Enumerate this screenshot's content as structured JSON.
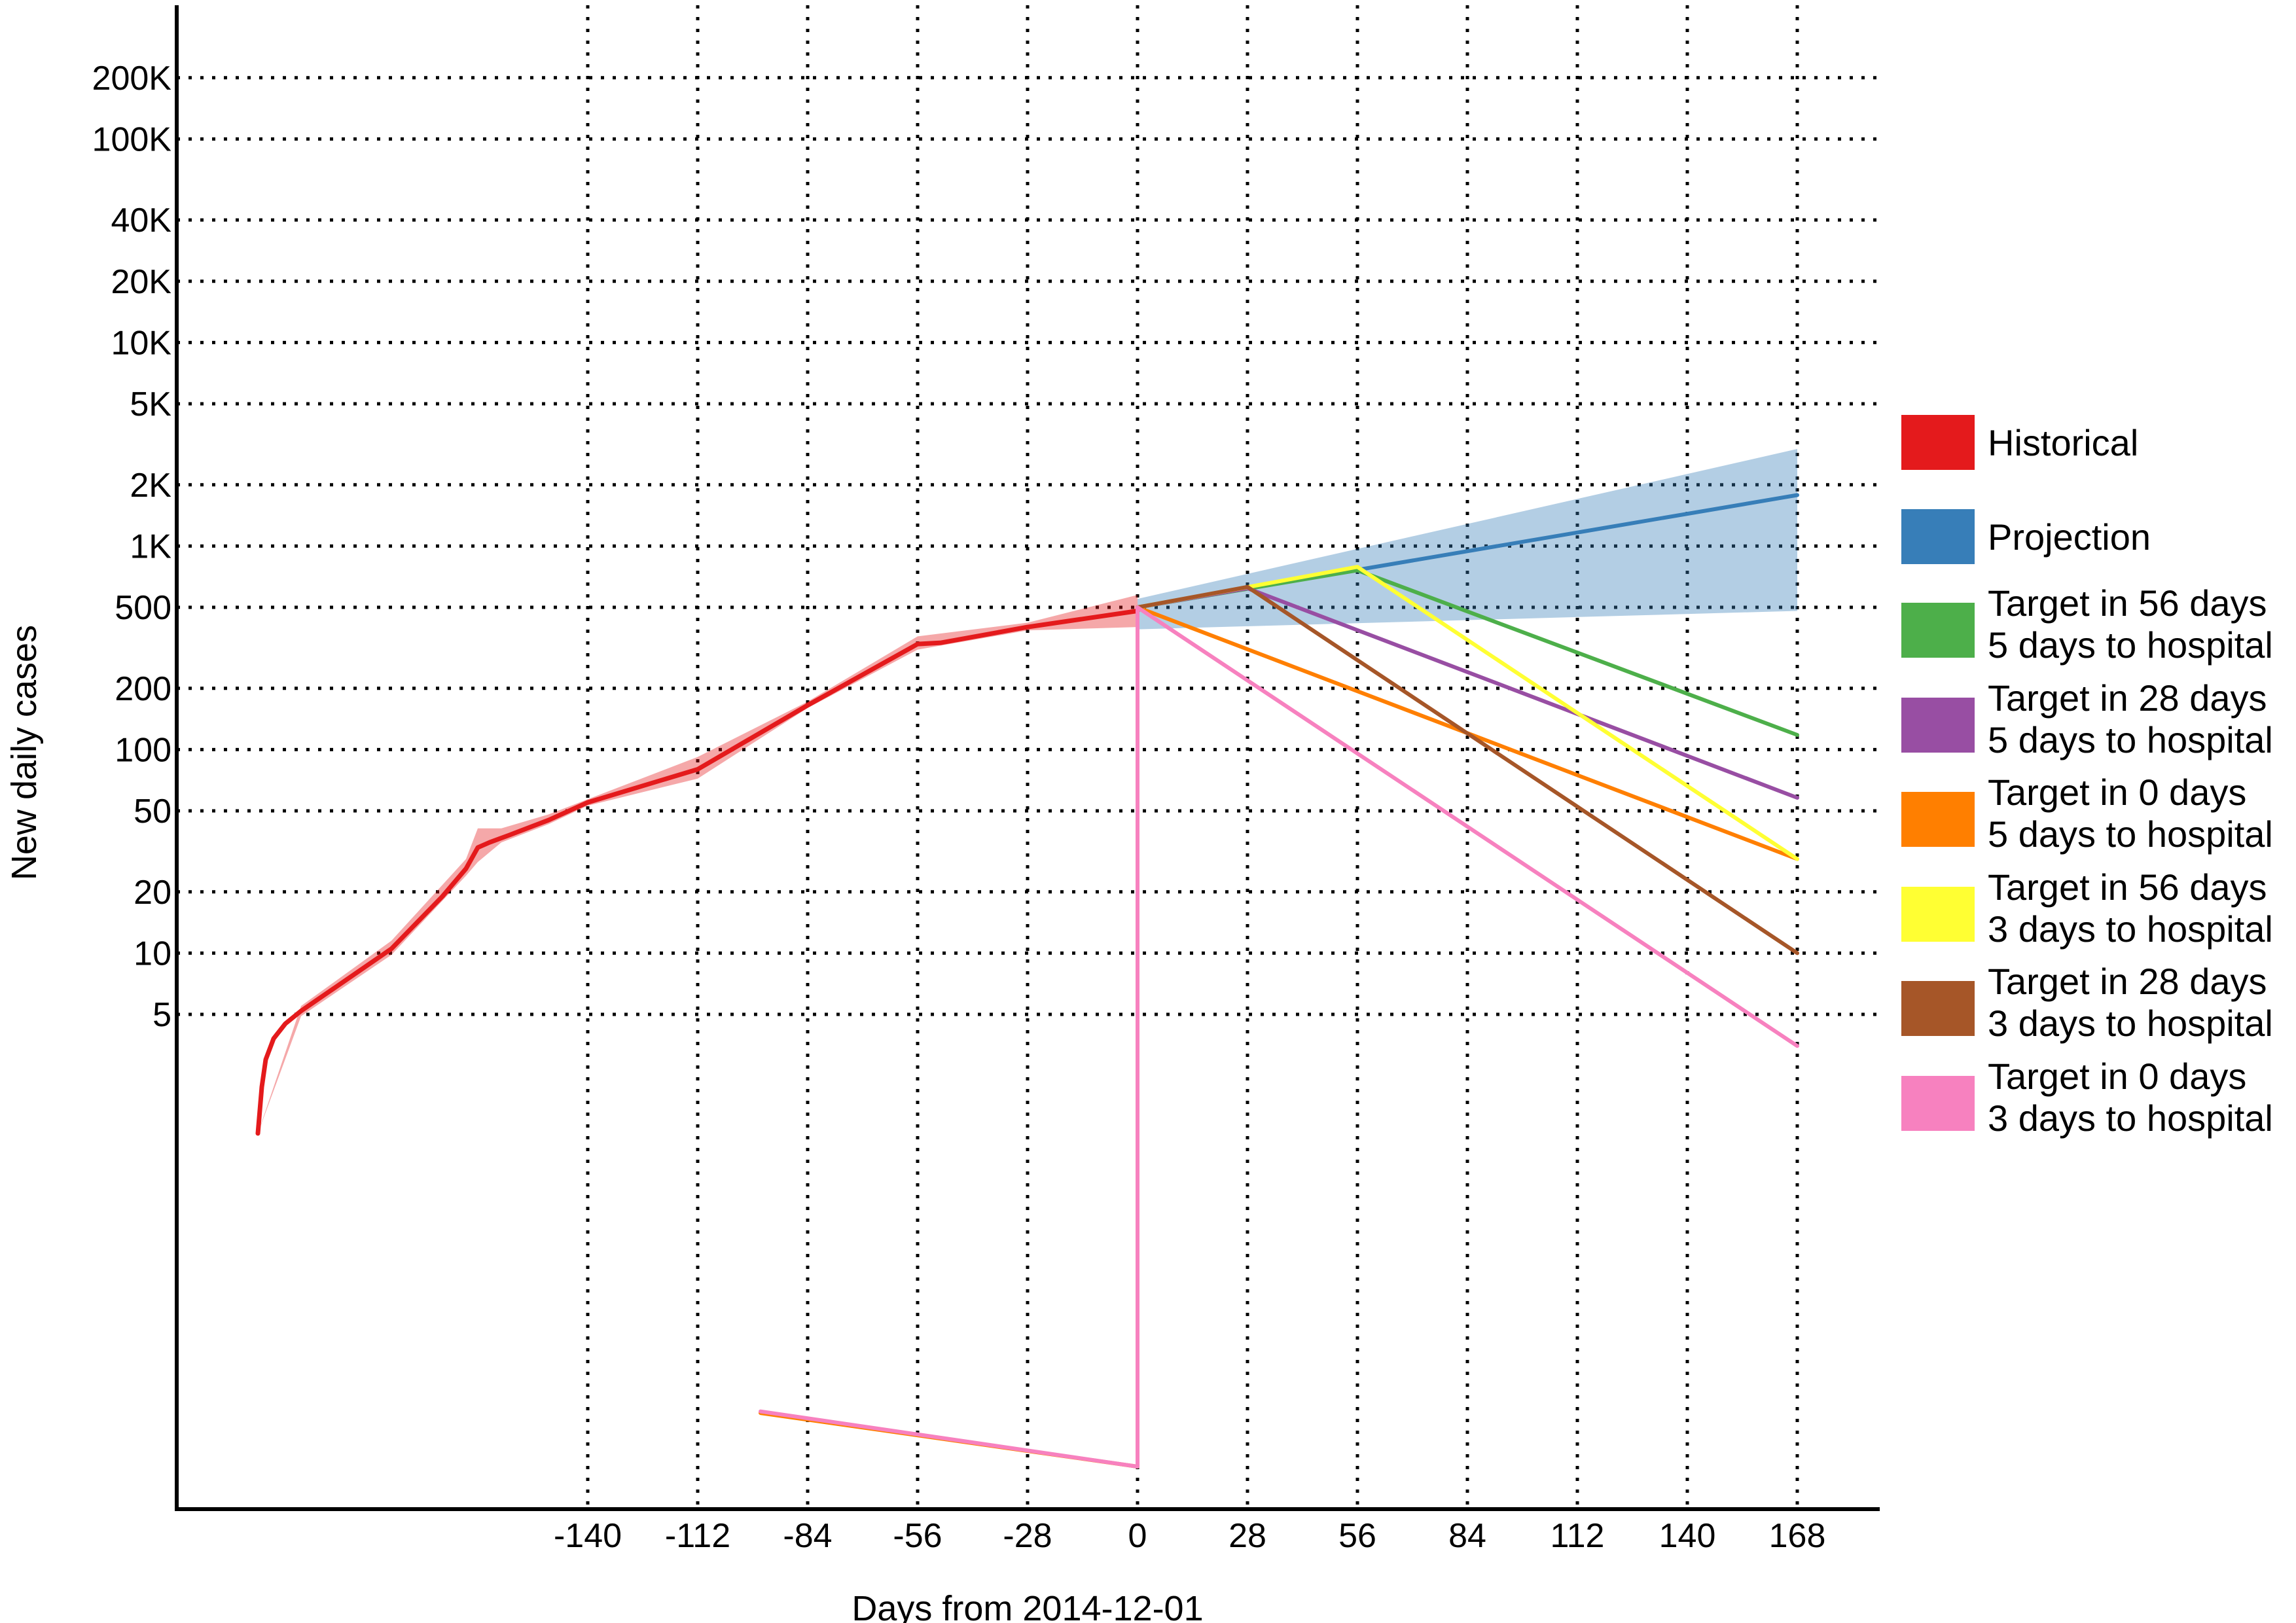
{
  "chart_data": {
    "type": "line",
    "xlabel": "Days from 2014-12-01",
    "ylabel": "New daily cases",
    "y_scale": "log",
    "xlim": [
      -250,
      180
    ],
    "x_ticks": [
      -140,
      -112,
      -84,
      -56,
      -28,
      0,
      28,
      56,
      84,
      112,
      140,
      168
    ],
    "y_ticks": [
      {
        "value": 5,
        "label": "5"
      },
      {
        "value": 10,
        "label": "10"
      },
      {
        "value": 20,
        "label": "20"
      },
      {
        "value": 50,
        "label": "50"
      },
      {
        "value": 100,
        "label": "100"
      },
      {
        "value": 200,
        "label": "200"
      },
      {
        "value": 500,
        "label": "500"
      },
      {
        "value": 1000,
        "label": "1K"
      },
      {
        "value": 2000,
        "label": "2K"
      },
      {
        "value": 5000,
        "label": "5K"
      },
      {
        "value": 10000,
        "label": "10K"
      },
      {
        "value": 20000,
        "label": "20K"
      },
      {
        "value": 40000,
        "label": "40K"
      },
      {
        "value": 100000,
        "label": "100K"
      },
      {
        "value": 200000,
        "label": "200K"
      }
    ],
    "grid": true,
    "legend_position": "right",
    "series": [
      {
        "name": "Historical",
        "color": "#e41a1c",
        "points": [
          [
            -224,
            1.3
          ],
          [
            -223,
            2.2
          ],
          [
            -222,
            3.0
          ],
          [
            -220,
            3.8
          ],
          [
            -217,
            4.5
          ],
          [
            -213,
            5.2
          ],
          [
            -190,
            10.5
          ],
          [
            -177,
            19
          ],
          [
            -171,
            26
          ],
          [
            -168,
            33
          ],
          [
            -165,
            35
          ],
          [
            -160,
            38
          ],
          [
            -150,
            45
          ],
          [
            -140,
            55
          ],
          [
            -112,
            80
          ],
          [
            -84,
            165
          ],
          [
            -56,
            330
          ],
          [
            -50,
            335
          ],
          [
            -28,
            400
          ],
          [
            0,
            480
          ]
        ],
        "band": [
          [
            -224,
            1.3,
            1.3
          ],
          [
            -213,
            4.9,
            5.5
          ],
          [
            -190,
            9.8,
            11.5
          ],
          [
            -171,
            24,
            29
          ],
          [
            -168,
            28,
            41
          ],
          [
            -162,
            35,
            41
          ],
          [
            -150,
            43,
            48
          ],
          [
            -140,
            53,
            57
          ],
          [
            -112,
            72,
            92
          ],
          [
            -84,
            160,
            172
          ],
          [
            -56,
            310,
            360
          ],
          [
            -28,
            385,
            420
          ],
          [
            0,
            400,
            575
          ]
        ]
      },
      {
        "name": "Projection",
        "color": "#377eb8",
        "points": [
          [
            0,
            500
          ],
          [
            168,
            1780
          ]
        ],
        "band": [
          [
            0,
            390,
            550
          ],
          [
            168,
            480,
            3000
          ]
        ]
      },
      {
        "name": "Target in 56 days 5 days to hospital",
        "color": "#4daf4a",
        "points": [
          [
            0,
            500
          ],
          [
            56,
            760
          ],
          [
            168,
            118
          ]
        ]
      },
      {
        "name": "Target in 28 days 5 days to hospital",
        "color": "#984ea3",
        "points": [
          [
            0,
            500
          ],
          [
            28,
            620
          ],
          [
            168,
            58
          ]
        ]
      },
      {
        "name": "Target in 0 days 5 days to hospital",
        "color": "#ff7f00",
        "points": [
          [
            -96,
            0.055
          ],
          [
            0,
            0.03
          ],
          [
            0,
            500
          ],
          [
            168,
            29
          ]
        ]
      },
      {
        "name": "Target in 56 days 3 days to hospital",
        "color": "#ffff33",
        "points": [
          [
            0,
            500
          ],
          [
            56,
            790
          ],
          [
            168,
            29
          ]
        ]
      },
      {
        "name": "Target in 28 days 3 days to hospital",
        "color": "#a65628",
        "points": [
          [
            0,
            500
          ],
          [
            28,
            630
          ],
          [
            168,
            10
          ]
        ]
      },
      {
        "name": "Target in 0 days 3 days to hospital",
        "color": "#f781bf",
        "points": [
          [
            -96,
            0.056
          ],
          [
            0,
            0.03
          ],
          [
            0,
            500
          ],
          [
            168,
            3.5
          ]
        ]
      }
    ],
    "legend": [
      {
        "color": "#e41a1c",
        "line1": "Historical",
        "line2": ""
      },
      {
        "color": "#377eb8",
        "line1": "Projection",
        "line2": ""
      },
      {
        "color": "#4daf4a",
        "line1": "Target in 56 days",
        "line2": "5 days to hospital"
      },
      {
        "color": "#984ea3",
        "line1": "Target in 28 days",
        "line2": "5 days to hospital"
      },
      {
        "color": "#ff7f00",
        "line1": "Target in 0 days",
        "line2": "5 days to hospital"
      },
      {
        "color": "#ffff33",
        "line1": "Target in 56 days",
        "line2": "3 days to hospital"
      },
      {
        "color": "#a65628",
        "line1": "Target in 28 days",
        "line2": "3 days to hospital"
      },
      {
        "color": "#f781bf",
        "line1": "Target in 0 days",
        "line2": "3 days to hospital"
      }
    ]
  }
}
